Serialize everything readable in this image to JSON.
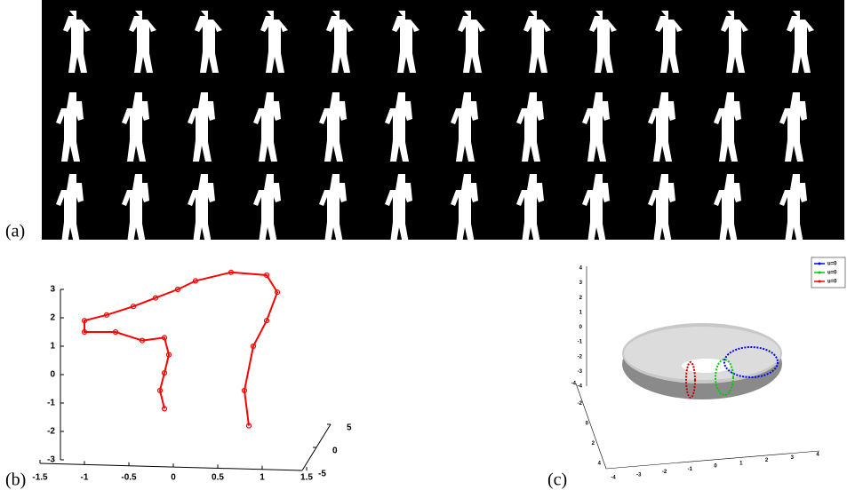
{
  "figure": {
    "panels": [
      {
        "label": "(a)"
      },
      {
        "label": "(b)",
        "line_color": "#ff0000",
        "x": [
          0.85,
          0.8,
          0.9,
          1.05,
          1.17,
          1.05,
          0.65,
          0.25,
          0.05,
          -0.2,
          -0.45,
          -0.75,
          -1.0,
          -1.0,
          -0.65,
          -0.35,
          -0.1,
          -0.05,
          -0.1,
          -0.15,
          -0.1
        ],
        "z": [
          -1.8,
          -0.56,
          1.0,
          1.9,
          2.9,
          3.5,
          3.6,
          3.3,
          3.0,
          2.7,
          2.4,
          2.1,
          1.9,
          1.5,
          1.5,
          1.2,
          1.3,
          0.7,
          0.06,
          -0.56,
          -1.2
        ],
        "xlim": [
          -1.5,
          1.5
        ],
        "xticks": [
          -1.5,
          -1,
          -0.5,
          0,
          0.5,
          1,
          1.5
        ],
        "zlim": [
          -3,
          3
        ],
        "zticks": [
          -3,
          -2,
          -1,
          0,
          1,
          2,
          3
        ],
        "ylim": [
          -5,
          5
        ],
        "yticks": [
          5,
          0,
          -5
        ]
      },
      {
        "label": "(c)",
        "zlim": [
          -4,
          4
        ],
        "zticks": [
          4,
          3,
          2,
          1,
          0,
          -1,
          -2,
          -3,
          -4
        ],
        "ylim": [
          -4,
          4
        ],
        "yticks": [
          4,
          2,
          0,
          -2,
          -4
        ],
        "xlim": [
          -4,
          4
        ],
        "xticks": [
          -4,
          -3,
          -2,
          -1,
          0,
          1,
          2,
          3,
          4
        ],
        "legend": [
          {
            "name": "u=0",
            "color": "#0000ff"
          },
          {
            "name": "u=0",
            "color": "#00cc00"
          },
          {
            "name": "u=0",
            "color": "#ff0000"
          }
        ]
      }
    ]
  }
}
